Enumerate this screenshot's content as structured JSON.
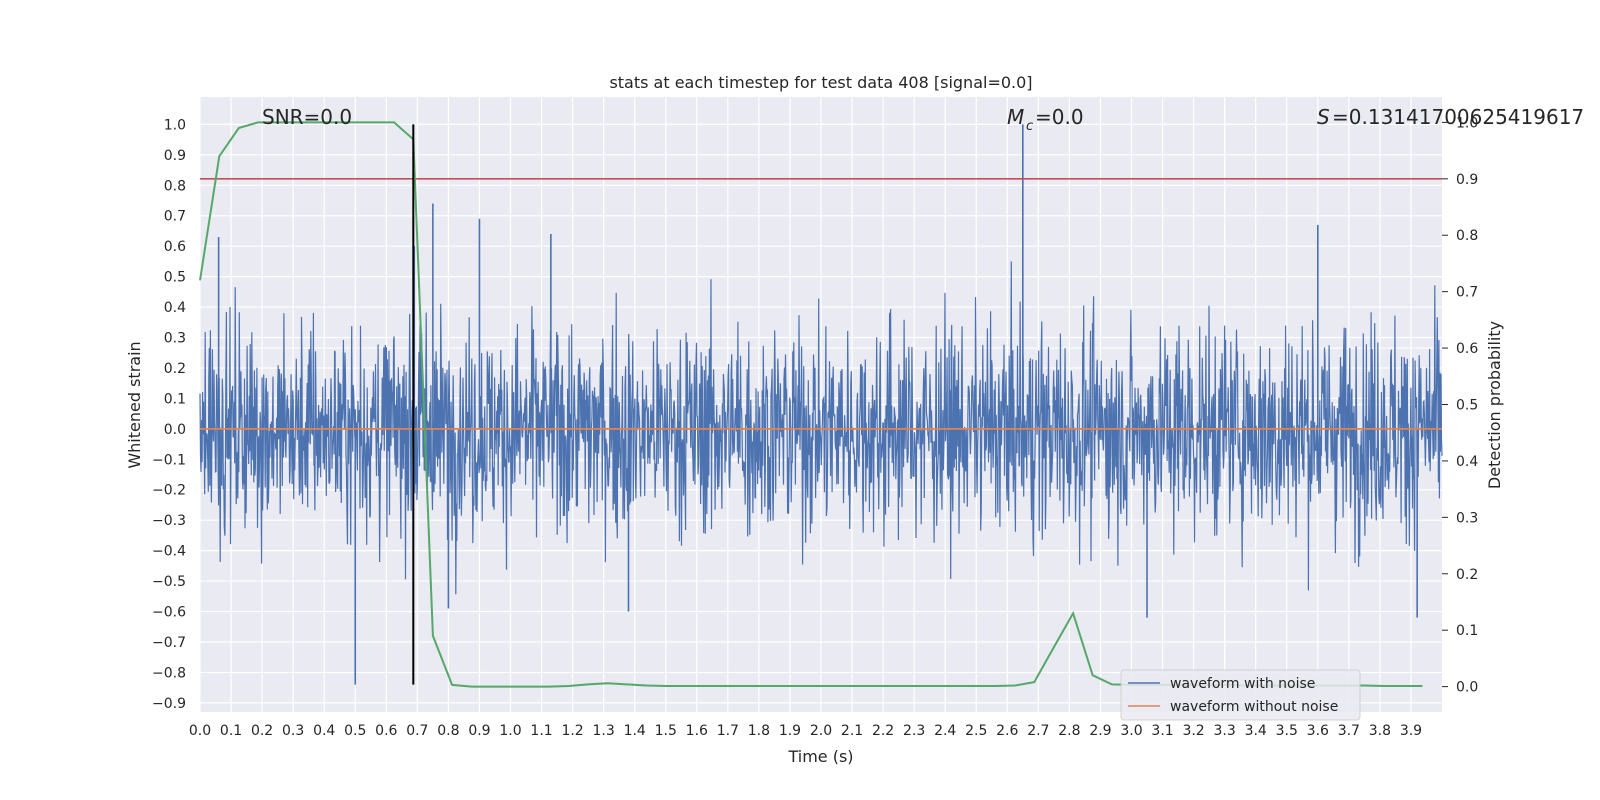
{
  "chart_data": {
    "type": "line",
    "title": "stats at each timestep for test data 408 [signal=0.0]",
    "xlabel": "Time (s)",
    "ylabel": "Whitened strain",
    "y2label": "Detection probability",
    "xlim": [
      0.0,
      4.0
    ],
    "ylim": [
      -0.93,
      1.09
    ],
    "y2lim": [
      -0.045,
      1.045
    ],
    "x_ticks": [
      "0.0",
      "0.1",
      "0.2",
      "0.3",
      "0.4",
      "0.5",
      "0.6",
      "0.7",
      "0.8",
      "0.9",
      "1.0",
      "1.1",
      "1.2",
      "1.3",
      "1.4",
      "1.5",
      "1.6",
      "1.7",
      "1.8",
      "1.9",
      "2.0",
      "2.1",
      "2.2",
      "2.3",
      "2.4",
      "2.5",
      "2.6",
      "2.7",
      "2.8",
      "2.9",
      "3.0",
      "3.1",
      "3.2",
      "3.3",
      "3.4",
      "3.5",
      "3.6",
      "3.7",
      "3.8",
      "3.9"
    ],
    "y_ticks": [
      "−0.9",
      "−0.8",
      "−0.7",
      "−0.6",
      "−0.5",
      "−0.4",
      "−0.3",
      "−0.2",
      "−0.1",
      "0.0",
      "0.1",
      "0.2",
      "0.3",
      "0.4",
      "0.5",
      "0.6",
      "0.7",
      "0.8",
      "0.9",
      "1.0"
    ],
    "y2_ticks": [
      "0.0",
      "0.1",
      "0.2",
      "0.3",
      "0.4",
      "0.5",
      "0.6",
      "0.7",
      "0.8",
      "0.9",
      "1.0"
    ],
    "grid": true,
    "legend_position": "bottom-right",
    "annotations": {
      "snr": "SNR=0.0",
      "mc": "=0.0",
      "mc_symbol": "M",
      "mc_subscript": "c",
      "s": "=0.13141700625419617",
      "s_symbol": "S"
    },
    "series": [
      {
        "name": "waveform with noise",
        "color": "#4c72b0",
        "axis": "left",
        "note_peaks": [
          {
            "x": 0.06,
            "y": 0.63
          },
          {
            "x": 0.5,
            "y": -0.84
          },
          {
            "x": 0.69,
            "y": 0.6
          },
          {
            "x": 0.75,
            "y": 0.74
          },
          {
            "x": 0.9,
            "y": 0.69
          },
          {
            "x": 0.8,
            "y": -0.59
          },
          {
            "x": 1.13,
            "y": 0.64
          },
          {
            "x": 1.38,
            "y": -0.6
          },
          {
            "x": 2.65,
            "y": 1.0
          },
          {
            "x": 3.05,
            "y": -0.62
          },
          {
            "x": 3.6,
            "y": 0.67
          },
          {
            "x": 3.92,
            "y": -0.62
          }
        ]
      },
      {
        "name": "waveform without noise",
        "color": "#dd8452",
        "axis": "left",
        "x": [
          0.0,
          4.0
        ],
        "y": [
          0.0,
          0.0
        ]
      },
      {
        "name": "detection probability",
        "color": "#55a868",
        "axis": "right",
        "x": [
          0.0,
          0.062,
          0.125,
          0.187,
          0.25,
          0.312,
          0.375,
          0.437,
          0.5,
          0.562,
          0.625,
          0.687,
          0.75,
          0.812,
          0.875,
          0.937,
          1.0,
          1.062,
          1.125,
          1.187,
          1.25,
          1.312,
          1.375,
          1.437,
          1.5,
          1.562,
          1.625,
          1.687,
          1.75,
          1.812,
          1.875,
          1.937,
          2.0,
          2.062,
          2.125,
          2.187,
          2.25,
          2.312,
          2.375,
          2.437,
          2.5,
          2.562,
          2.625,
          2.687,
          2.75,
          2.812,
          2.875,
          2.937,
          3.0,
          3.062,
          3.125,
          3.187,
          3.25,
          3.312,
          3.375,
          3.437,
          3.5,
          3.562,
          3.625,
          3.687,
          3.75,
          3.812,
          3.875,
          3.937
        ],
        "y": [
          0.72,
          0.94,
          0.99,
          1.0,
          1.0,
          1.0,
          1.0,
          1.0,
          1.0,
          1.0,
          1.0,
          0.97,
          0.09,
          0.003,
          0.0,
          0.0,
          0.0,
          0.0,
          0.0,
          0.001,
          0.004,
          0.006,
          0.004,
          0.002,
          0.001,
          0.001,
          0.001,
          0.001,
          0.001,
          0.001,
          0.001,
          0.001,
          0.001,
          0.001,
          0.001,
          0.001,
          0.001,
          0.001,
          0.001,
          0.001,
          0.001,
          0.001,
          0.002,
          0.008,
          0.07,
          0.13,
          0.02,
          0.004,
          0.003,
          0.003,
          0.003,
          0.003,
          0.003,
          0.003,
          0.002,
          0.002,
          0.002,
          0.002,
          0.002,
          0.002,
          0.002,
          0.001,
          0.001,
          0.001
        ]
      }
    ],
    "threshold": {
      "axis": "right",
      "y": 0.9,
      "color": "#c44e52"
    },
    "marker_line": {
      "x": 0.687,
      "y_from": -0.84,
      "y_to": 1.0,
      "color": "#000000"
    }
  }
}
